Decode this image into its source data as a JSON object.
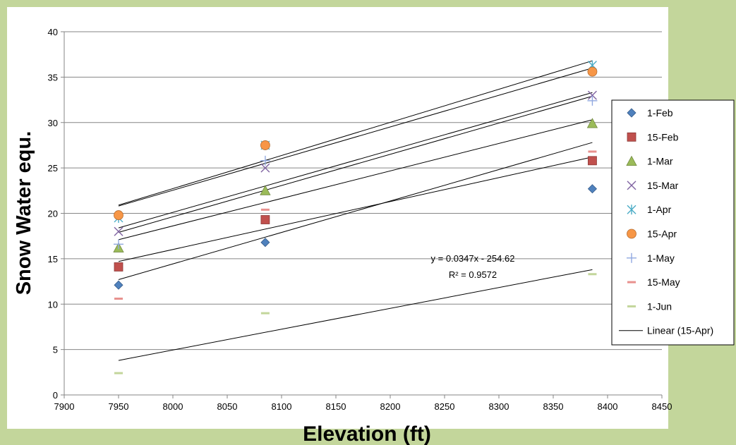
{
  "chart_data": {
    "type": "scatter",
    "title": "",
    "xlabel": "Elevation (ft)",
    "ylabel": "Snow Water equ.",
    "xlim": [
      7900,
      8450
    ],
    "ylim": [
      0,
      40
    ],
    "x_ticks": [
      7900,
      7950,
      8000,
      8050,
      8100,
      8150,
      8200,
      8250,
      8300,
      8350,
      8400,
      8450
    ],
    "y_ticks": [
      0,
      5,
      10,
      15,
      20,
      25,
      30,
      35,
      40
    ],
    "grid": "horizontal",
    "legend_position": "right",
    "series": [
      {
        "name": "1-Feb",
        "marker": "diamond",
        "color": "#4f81bd",
        "x": [
          7950,
          8085,
          8386
        ],
        "y": [
          12.1,
          16.8,
          22.7
        ]
      },
      {
        "name": "15-Feb",
        "marker": "square",
        "color": "#c0504d",
        "x": [
          7950,
          8085,
          8386
        ],
        "y": [
          14.1,
          19.3,
          25.8
        ]
      },
      {
        "name": "1-Mar",
        "marker": "triangle",
        "color": "#9bbb59",
        "x": [
          7950,
          8085,
          8386
        ],
        "y": [
          16.2,
          22.5,
          29.9
        ]
      },
      {
        "name": "15-Mar",
        "marker": "x",
        "color": "#8064a2",
        "x": [
          7950,
          8085,
          8386
        ],
        "y": [
          18.0,
          25.0,
          33.0
        ]
      },
      {
        "name": "1-Apr",
        "marker": "star",
        "color": "#4bacc6",
        "x": [
          7950,
          8085,
          8386
        ],
        "y": [
          19.5,
          27.5,
          36.3
        ]
      },
      {
        "name": "15-Apr",
        "marker": "circle",
        "color": "#f79646",
        "x": [
          7950,
          8085,
          8386
        ],
        "y": [
          19.8,
          27.5,
          35.6
        ]
      },
      {
        "name": "1-May",
        "marker": "plus",
        "color": "#92a9e0",
        "x": [
          7950,
          8085,
          8386
        ],
        "y": [
          16.6,
          25.8,
          32.4
        ]
      },
      {
        "name": "15-May",
        "marker": "dash",
        "color": "#e8918e",
        "x": [
          7950,
          8085,
          8386
        ],
        "y": [
          10.6,
          20.4,
          26.8
        ]
      },
      {
        "name": "1-Jun",
        "marker": "dash",
        "color": "#c3d69b",
        "x": [
          7950,
          8085,
          8386
        ],
        "y": [
          2.4,
          9.0,
          13.3
        ]
      }
    ],
    "trendlines": [
      {
        "x": [
          7950,
          8386
        ],
        "y": [
          12.7,
          27.8
        ]
      },
      {
        "x": [
          7950,
          8386
        ],
        "y": [
          14.7,
          26.2
        ]
      },
      {
        "x": [
          7950,
          8386
        ],
        "y": [
          17.1,
          30.3
        ]
      },
      {
        "x": [
          7950,
          8386
        ],
        "y": [
          18.4,
          33.3
        ]
      },
      {
        "x": [
          7950,
          8386
        ],
        "y": [
          20.9,
          36.8
        ]
      },
      {
        "x": [
          7950,
          8386
        ],
        "y": [
          20.8,
          36.0
        ]
      },
      {
        "x": [
          7950,
          8386
        ],
        "y": [
          17.9,
          32.9
        ]
      },
      {
        "x": [
          7950,
          8386
        ],
        "y": [
          3.8,
          13.8
        ]
      }
    ],
    "legend_extra": {
      "label": "Linear (15-Apr)",
      "color": "#000000"
    },
    "annotation": {
      "equation": "y = 0.0347x - 254.62",
      "r_squared": "R² = 0.9572"
    }
  }
}
